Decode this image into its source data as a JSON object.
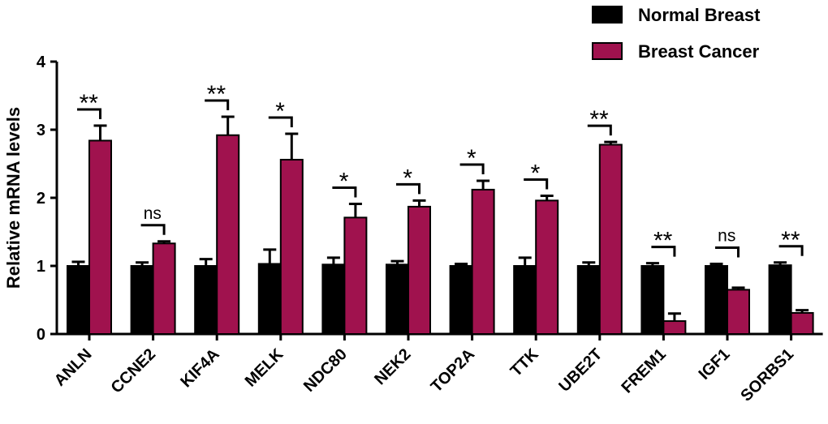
{
  "chart_data": {
    "type": "bar",
    "ylabel": "Relative mRNA levels",
    "xlabel": "",
    "title": "",
    "ylim": [
      0,
      4
    ],
    "yticks": [
      "0",
      "1",
      "2",
      "3",
      "4"
    ],
    "categories": [
      "ANLN",
      "CCNE2",
      "KIF4A",
      "MELK",
      "NDC80",
      "NEK2",
      "TOP2A",
      "TTK",
      "UBE2T",
      "FREM1",
      "IGF1",
      "SORBS1"
    ],
    "series": [
      {
        "name": "Normal Breast",
        "color": "#000000",
        "values": [
          1.0,
          1.0,
          1.0,
          1.03,
          1.02,
          1.02,
          1.0,
          1.0,
          1.0,
          1.0,
          1.0,
          1.01
        ],
        "errors": [
          0.06,
          0.05,
          0.1,
          0.21,
          0.1,
          0.05,
          0.03,
          0.12,
          0.05,
          0.04,
          0.03,
          0.04
        ]
      },
      {
        "name": "Breast Cancer",
        "color": "#a0124e",
        "values": [
          2.84,
          1.33,
          2.92,
          2.56,
          1.71,
          1.87,
          2.12,
          1.96,
          2.78,
          0.19,
          0.65,
          0.31
        ],
        "errors": [
          0.22,
          0.03,
          0.27,
          0.38,
          0.2,
          0.09,
          0.13,
          0.07,
          0.04,
          0.11,
          0.03,
          0.04
        ]
      }
    ],
    "significance": [
      "**",
      "ns",
      "**",
      "*",
      "*",
      "*",
      "*",
      "*",
      "**",
      "**",
      "ns",
      "**"
    ],
    "legend_position": "top-right",
    "grid": false
  }
}
